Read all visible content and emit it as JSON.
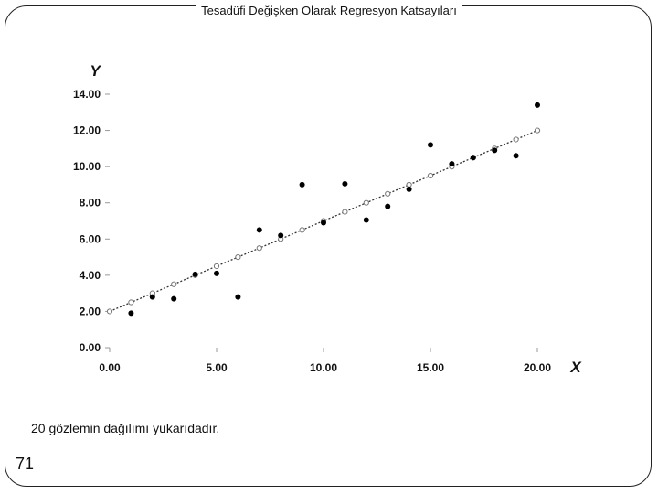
{
  "slide": {
    "title": "Tesadüfi Değişken Olarak Regresyon Katsayıları",
    "caption": "20 gözlemin dağılımı yukarıdadır.",
    "page_number": "71"
  },
  "chart_data": {
    "type": "scatter",
    "title": "",
    "xlabel": "X",
    "ylabel": "Y",
    "xlim": [
      0,
      20
    ],
    "ylim": [
      0,
      14
    ],
    "x_ticks": [
      0,
      5,
      10,
      15,
      20
    ],
    "x_tick_labels": [
      "0.00",
      "5.00",
      "10.00",
      "15.00",
      "20.00"
    ],
    "y_ticks": [
      0,
      2,
      4,
      6,
      8,
      10,
      12,
      14
    ],
    "y_tick_labels": [
      "0.00",
      "2.00",
      "4.00",
      "6.00",
      "8.00",
      "10.00",
      "12.00",
      "14.00"
    ],
    "grid": false,
    "legend": "none",
    "series": [
      {
        "marker": "filled-circle",
        "color": "#000000",
        "points": [
          [
            1,
            1.9
          ],
          [
            2,
            2.8
          ],
          [
            3,
            2.7
          ],
          [
            4,
            4.05
          ],
          [
            5,
            4.1
          ],
          [
            6,
            2.8
          ],
          [
            7,
            6.5
          ],
          [
            8,
            6.2
          ],
          [
            9,
            9.0
          ],
          [
            10,
            6.9
          ],
          [
            11,
            9.05
          ],
          [
            12,
            7.05
          ],
          [
            13,
            7.8
          ],
          [
            14,
            8.75
          ],
          [
            15,
            11.2
          ],
          [
            16,
            10.15
          ],
          [
            17,
            10.5
          ],
          [
            18,
            10.9
          ],
          [
            19,
            10.6
          ],
          [
            20,
            13.4
          ]
        ]
      },
      {
        "marker": "open-circle",
        "line": "dotted",
        "color": "#555555",
        "points": [
          [
            0,
            2.0
          ],
          [
            1,
            2.5
          ],
          [
            2,
            3.0
          ],
          [
            3,
            3.5
          ],
          [
            4,
            4.0
          ],
          [
            5,
            4.5
          ],
          [
            6,
            5.0
          ],
          [
            7,
            5.5
          ],
          [
            8,
            6.0
          ],
          [
            9,
            6.5
          ],
          [
            10,
            7.0
          ],
          [
            11,
            7.5
          ],
          [
            12,
            8.0
          ],
          [
            13,
            8.5
          ],
          [
            14,
            9.0
          ],
          [
            15,
            9.5
          ],
          [
            16,
            10.0
          ],
          [
            17,
            10.5
          ],
          [
            18,
            11.0
          ],
          [
            19,
            11.5
          ],
          [
            20,
            12.0
          ]
        ]
      }
    ]
  }
}
